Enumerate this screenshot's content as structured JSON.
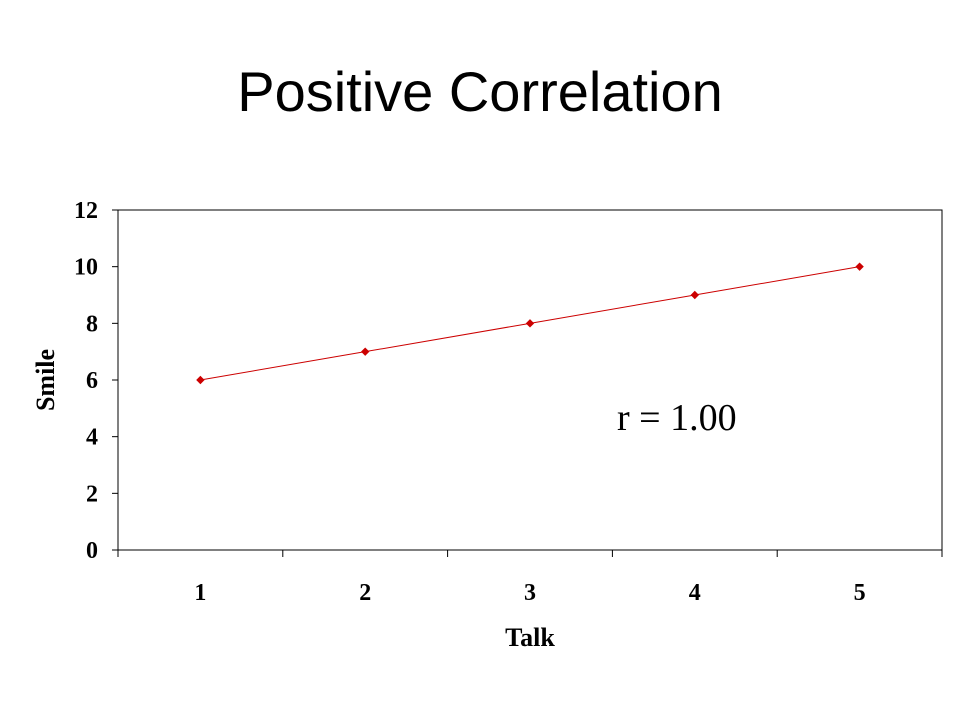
{
  "slide": {
    "title": "Positive Correlation"
  },
  "chart_data": {
    "type": "line",
    "categories": [
      "1",
      "2",
      "3",
      "4",
      "5"
    ],
    "series": [
      {
        "values": [
          6,
          7,
          8,
          9,
          10
        ],
        "color": "#cc0000",
        "marker": "diamond"
      }
    ],
    "xlabel": "Talk",
    "ylabel": "Smile",
    "ylim": [
      0,
      12
    ],
    "yticks": [
      0,
      2,
      4,
      6,
      8,
      10,
      12
    ],
    "grid": false,
    "legend": "none",
    "annotation": "r = 1.00"
  }
}
